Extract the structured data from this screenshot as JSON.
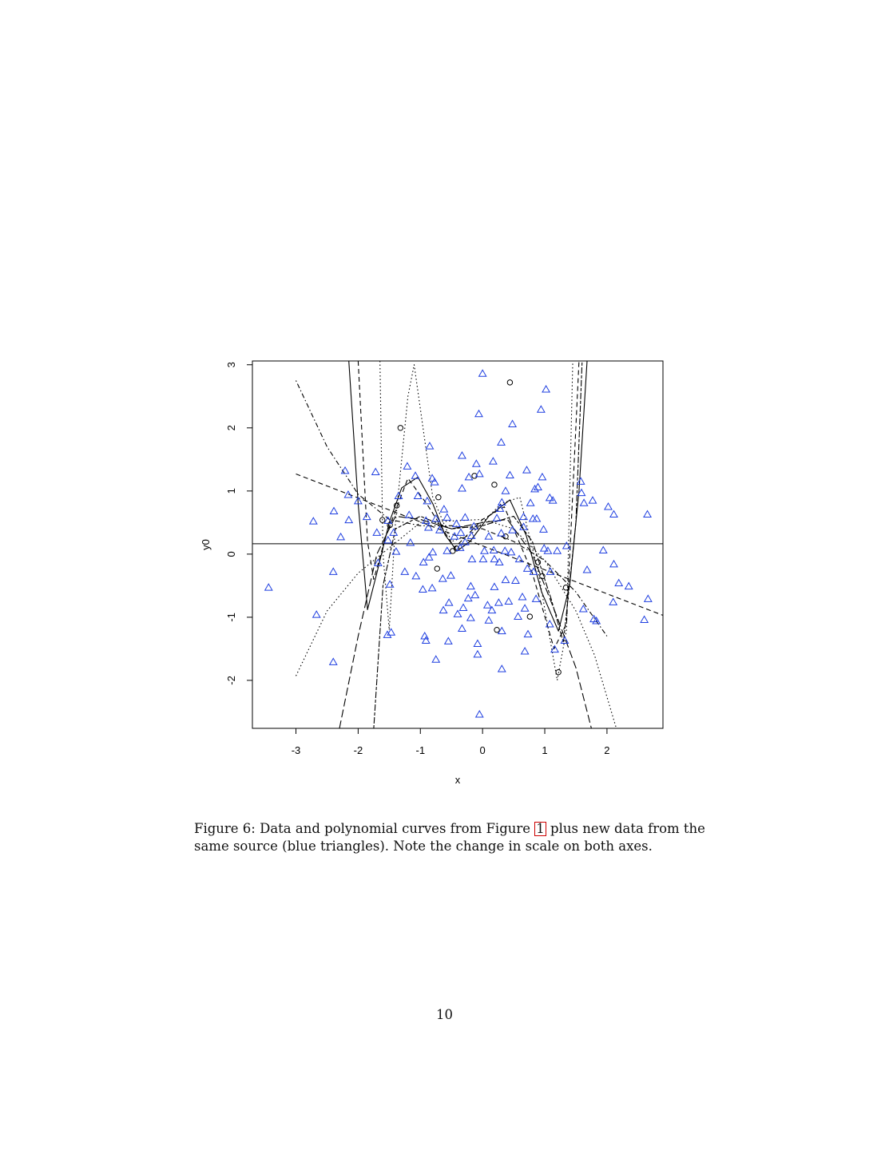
{
  "chart_data": {
    "type": "scatter",
    "xlabel": "x",
    "ylabel": "y0",
    "xlim": [
      -3.7,
      2.9
    ],
    "ylim": [
      -2.76,
      3.06
    ],
    "xticks": [
      -3,
      -2,
      -1,
      0,
      1,
      2
    ],
    "yticks": [
      -2,
      -1,
      0,
      1,
      2,
      3
    ],
    "grid": false,
    "hline": 0.165,
    "colors": {
      "triangles": "#1f3fe0",
      "circles": "#000000",
      "curves": "#000000"
    },
    "series": [
      {
        "marker": "circle",
        "points": [
          [
            -1.32,
            2.0
          ],
          [
            0.44,
            2.72
          ],
          [
            -0.13,
            1.24
          ],
          [
            0.19,
            1.1
          ],
          [
            -0.71,
            0.9
          ],
          [
            -1.38,
            0.77
          ],
          [
            -1.61,
            0.54
          ],
          [
            0.37,
            0.28
          ],
          [
            -0.42,
            0.09
          ],
          [
            -0.48,
            0.05
          ],
          [
            -0.73,
            -0.23
          ],
          [
            0.89,
            -0.13
          ],
          [
            0.96,
            -0.35
          ],
          [
            1.34,
            -0.53
          ],
          [
            0.76,
            -0.99
          ],
          [
            0.23,
            -1.2
          ],
          [
            1.22,
            -1.87
          ],
          [
            -1.49,
            0.46
          ]
        ]
      },
      {
        "marker": "triangle",
        "points": [
          [
            0.0,
            2.86
          ],
          [
            1.02,
            2.61
          ],
          [
            0.94,
            2.29
          ],
          [
            -0.06,
            2.22
          ],
          [
            0.48,
            2.06
          ],
          [
            -0.85,
            1.71
          ],
          [
            0.3,
            1.77
          ],
          [
            -0.33,
            1.56
          ],
          [
            0.17,
            1.47
          ],
          [
            -0.1,
            1.43
          ],
          [
            0.71,
            1.33
          ],
          [
            -2.21,
            1.32
          ],
          [
            -1.72,
            1.3
          ],
          [
            -1.21,
            1.39
          ],
          [
            -1.08,
            1.24
          ],
          [
            -0.81,
            1.2
          ],
          [
            -0.22,
            1.22
          ],
          [
            -0.05,
            1.27
          ],
          [
            0.44,
            1.25
          ],
          [
            0.96,
            1.22
          ],
          [
            -0.77,
            1.14
          ],
          [
            -0.33,
            1.04
          ],
          [
            0.37,
            1.0
          ],
          [
            0.84,
            1.03
          ],
          [
            0.89,
            1.06
          ],
          [
            1.58,
            1.15
          ],
          [
            1.59,
            0.97
          ],
          [
            1.77,
            0.85
          ],
          [
            1.63,
            0.81
          ],
          [
            1.08,
            0.89
          ],
          [
            1.13,
            0.85
          ],
          [
            2.02,
            0.75
          ],
          [
            2.11,
            0.63
          ],
          [
            2.65,
            0.63
          ],
          [
            -2.16,
            0.94
          ],
          [
            -2.0,
            0.84
          ],
          [
            -2.39,
            0.68
          ],
          [
            -2.72,
            0.52
          ],
          [
            -2.15,
            0.54
          ],
          [
            -1.86,
            0.59
          ],
          [
            -2.28,
            0.27
          ],
          [
            -1.7,
            0.34
          ],
          [
            -1.04,
            0.92
          ],
          [
            -1.35,
            0.92
          ],
          [
            -0.89,
            0.84
          ],
          [
            -0.62,
            0.71
          ],
          [
            -1.18,
            0.62
          ],
          [
            -0.91,
            0.53
          ],
          [
            -0.75,
            0.56
          ],
          [
            -0.57,
            0.58
          ],
          [
            -0.28,
            0.58
          ],
          [
            -0.14,
            0.44
          ],
          [
            -0.42,
            0.48
          ],
          [
            -0.69,
            0.38
          ],
          [
            -0.87,
            0.42
          ],
          [
            -1.52,
            0.53
          ],
          [
            -1.43,
            0.34
          ],
          [
            -1.16,
            0.18
          ],
          [
            -1.52,
            0.22
          ],
          [
            -1.39,
            0.04
          ],
          [
            -0.35,
            0.34
          ],
          [
            -0.18,
            0.29
          ],
          [
            0.1,
            0.28
          ],
          [
            0.3,
            0.33
          ],
          [
            0.48,
            0.38
          ],
          [
            0.66,
            0.43
          ],
          [
            0.81,
            0.56
          ],
          [
            0.87,
            0.56
          ],
          [
            0.98,
            0.39
          ],
          [
            0.77,
            0.81
          ],
          [
            0.28,
            0.72
          ],
          [
            0.31,
            0.82
          ],
          [
            0.23,
            0.57
          ],
          [
            0.66,
            0.59
          ],
          [
            0.03,
            0.05
          ],
          [
            0.18,
            0.06
          ],
          [
            0.36,
            0.05
          ],
          [
            0.46,
            0.03
          ],
          [
            0.99,
            0.09
          ],
          [
            1.05,
            0.05
          ],
          [
            1.2,
            0.05
          ],
          [
            1.35,
            0.13
          ],
          [
            1.94,
            0.06
          ],
          [
            -0.57,
            0.05
          ],
          [
            -0.8,
            0.03
          ],
          [
            -0.86,
            -0.05
          ],
          [
            -0.95,
            -0.13
          ],
          [
            -1.25,
            -0.28
          ],
          [
            -1.07,
            -0.35
          ],
          [
            -1.68,
            -0.14
          ],
          [
            -2.4,
            -0.28
          ],
          [
            -0.51,
            -0.34
          ],
          [
            -0.17,
            -0.08
          ],
          [
            0.01,
            -0.08
          ],
          [
            0.19,
            -0.08
          ],
          [
            0.27,
            -0.13
          ],
          [
            0.59,
            -0.08
          ],
          [
            0.72,
            -0.23
          ],
          [
            0.82,
            -0.28
          ],
          [
            1.09,
            -0.28
          ],
          [
            1.68,
            -0.25
          ],
          [
            2.11,
            -0.16
          ],
          [
            2.19,
            -0.46
          ],
          [
            2.35,
            -0.51
          ],
          [
            2.66,
            -0.71
          ],
          [
            2.1,
            -0.76
          ],
          [
            2.6,
            -1.04
          ],
          [
            1.83,
            -1.06
          ],
          [
            1.79,
            -1.03
          ],
          [
            1.62,
            -0.87
          ],
          [
            -3.44,
            -0.53
          ],
          [
            -2.67,
            -0.96
          ],
          [
            -2.4,
            -1.71
          ],
          [
            -1.53,
            -1.28
          ],
          [
            -1.47,
            -1.24
          ],
          [
            -1.49,
            -0.48
          ],
          [
            -0.96,
            -0.56
          ],
          [
            -0.81,
            -0.54
          ],
          [
            -0.63,
            -0.89
          ],
          [
            -0.54,
            -0.77
          ],
          [
            -0.4,
            -0.95
          ],
          [
            -0.31,
            -0.85
          ],
          [
            -0.23,
            -0.7
          ],
          [
            -0.19,
            -0.51
          ],
          [
            -0.12,
            -0.65
          ],
          [
            0.08,
            -0.81
          ],
          [
            0.15,
            -0.89
          ],
          [
            0.26,
            -0.77
          ],
          [
            0.42,
            -0.75
          ],
          [
            0.64,
            -0.68
          ],
          [
            0.68,
            -0.86
          ],
          [
            0.86,
            -0.71
          ],
          [
            1.08,
            -1.11
          ],
          [
            0.73,
            -1.27
          ],
          [
            0.57,
            -0.99
          ],
          [
            -0.33,
            -1.18
          ],
          [
            0.1,
            -1.05
          ],
          [
            -0.19,
            -1.01
          ],
          [
            -0.91,
            -1.37
          ],
          [
            -0.93,
            -1.3
          ],
          [
            -0.55,
            -1.38
          ],
          [
            -0.08,
            -1.42
          ],
          [
            0.31,
            -1.22
          ],
          [
            -0.75,
            -1.67
          ],
          [
            -0.08,
            -1.59
          ],
          [
            0.31,
            -1.82
          ],
          [
            0.68,
            -1.54
          ],
          [
            -0.05,
            -2.54
          ],
          [
            1.16,
            -1.51
          ],
          [
            1.32,
            -1.37
          ],
          [
            0.37,
            -0.41
          ],
          [
            0.19,
            -0.52
          ],
          [
            0.53,
            -0.42
          ],
          [
            -0.64,
            -0.39
          ],
          [
            -0.36,
            0.1
          ],
          [
            -0.45,
            0.28
          ],
          [
            -0.28,
            0.19
          ]
        ]
      }
    ],
    "curves": [
      {
        "style": "solid",
        "points": [
          [
            -2.15,
            3.06
          ],
          [
            -2.0,
            0.8
          ],
          [
            -1.85,
            -0.88
          ],
          [
            -1.7,
            -0.3
          ],
          [
            -1.5,
            0.5
          ],
          [
            -1.3,
            1.05
          ],
          [
            -1.04,
            1.22
          ],
          [
            -0.8,
            0.8
          ],
          [
            -0.6,
            0.3
          ],
          [
            -0.41,
            0.05
          ],
          [
            -0.2,
            0.2
          ],
          [
            0.1,
            0.6
          ],
          [
            0.44,
            0.86
          ],
          [
            0.7,
            0.3
          ],
          [
            0.95,
            -0.6
          ],
          [
            1.22,
            -1.22
          ],
          [
            1.4,
            -0.5
          ],
          [
            1.55,
            1.0
          ],
          [
            1.68,
            3.06
          ]
        ]
      },
      {
        "style": "dashed",
        "points": [
          [
            -3,
            1.27
          ],
          [
            2.9,
            -0.97
          ]
        ]
      },
      {
        "style": "dashdot",
        "points": [
          [
            -3,
            2.75
          ],
          [
            -2.5,
            1.7
          ],
          [
            -2,
            0.95
          ],
          [
            -1.5,
            0.55
          ],
          [
            -1,
            0.45
          ],
          [
            -0.5,
            0.45
          ],
          [
            0,
            0.4
          ],
          [
            0.5,
            0.2
          ],
          [
            1,
            -0.1
          ],
          [
            1.5,
            -0.6
          ],
          [
            2,
            -1.3
          ]
        ]
      },
      {
        "style": "dotted",
        "points": [
          [
            -3,
            -1.93
          ],
          [
            -2.5,
            -0.9
          ],
          [
            -2,
            -0.3
          ],
          [
            -1.5,
            0.1
          ],
          [
            -1,
            0.5
          ],
          [
            0,
            0.55
          ],
          [
            0.5,
            0.4
          ],
          [
            1,
            -0.1
          ],
          [
            1.5,
            -0.9
          ],
          [
            1.8,
            -1.6
          ],
          [
            2.15,
            -2.76
          ]
        ]
      },
      {
        "style": "longdash",
        "points": [
          [
            -2.3,
            -2.76
          ],
          [
            -2,
            -1.3
          ],
          [
            -1.7,
            0.0
          ],
          [
            -1.4,
            0.6
          ],
          [
            -1,
            0.55
          ],
          [
            -0.5,
            0.4
          ],
          [
            0,
            0.5
          ],
          [
            0.4,
            0.55
          ],
          [
            0.8,
            0.0
          ],
          [
            1.2,
            -1.0
          ],
          [
            1.5,
            -1.8
          ],
          [
            1.75,
            -2.76
          ]
        ]
      },
      {
        "style": "twodash",
        "points": [
          [
            -1.75,
            -2.76
          ],
          [
            -1.6,
            -0.5
          ],
          [
            -1.4,
            0.4
          ],
          [
            -1.0,
            0.6
          ],
          [
            -0.5,
            0.4
          ],
          [
            0,
            0.45
          ],
          [
            0.5,
            0.6
          ],
          [
            0.8,
            0.2
          ],
          [
            1.1,
            -0.7
          ],
          [
            1.3,
            -1.4
          ],
          [
            1.5,
            0.5
          ],
          [
            1.6,
            3.06
          ]
        ]
      },
      {
        "style": "dotted",
        "points": [
          [
            -1.65,
            3.06
          ],
          [
            -1.6,
            0.0
          ],
          [
            -1.5,
            -1.2
          ],
          [
            -1.4,
            0.5
          ],
          [
            -1.2,
            2.5
          ],
          [
            -1.1,
            3.0
          ],
          [
            -1.0,
            2.3
          ],
          [
            -0.8,
            0.9
          ],
          [
            -0.5,
            0.2
          ],
          [
            -0.2,
            0.3
          ],
          [
            0.3,
            0.8
          ],
          [
            0.6,
            0.9
          ],
          [
            0.9,
            -0.3
          ],
          [
            1.2,
            -2.0
          ],
          [
            1.35,
            -1.2
          ],
          [
            1.45,
            3.06
          ]
        ]
      },
      {
        "style": "dashed",
        "points": [
          [
            -2.0,
            3.06
          ],
          [
            -1.85,
            0.2
          ],
          [
            -1.75,
            -0.4
          ],
          [
            -1.55,
            0.3
          ],
          [
            -1.2,
            1.2
          ],
          [
            -0.9,
            0.8
          ],
          [
            -0.45,
            0.1
          ],
          [
            0,
            0.55
          ],
          [
            0.35,
            0.75
          ],
          [
            0.8,
            -0.3
          ],
          [
            1.15,
            -1.5
          ],
          [
            1.35,
            -1.1
          ],
          [
            1.55,
            3.06
          ]
        ]
      }
    ]
  },
  "caption": {
    "before": "Figure 6: Data and polynomial curves from Figure ",
    "ref": "1",
    "after": " plus new data from the same source (blue triangles). Note the change in scale on both axes."
  },
  "page_number": "10"
}
